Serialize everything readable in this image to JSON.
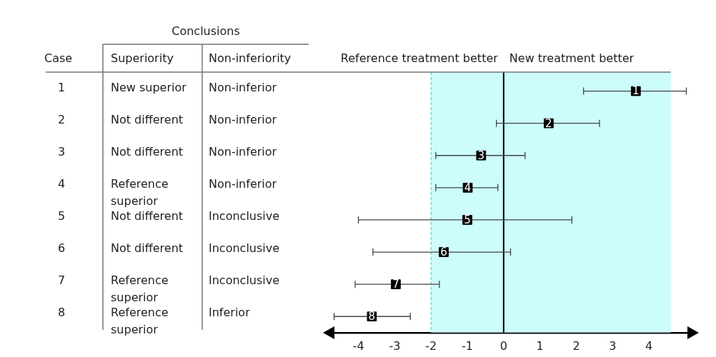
{
  "chart_data": {
    "type": "scatter",
    "orientation": "horizontal",
    "categories": [
      "1",
      "2",
      "3",
      "4",
      "5",
      "6",
      "7",
      "8"
    ],
    "values": [
      3.64,
      1.24,
      -0.62,
      -0.99,
      -1.0,
      -1.65,
      -2.97,
      -3.63
    ],
    "errors": [
      [
        2.2,
        5.03
      ],
      [
        -0.2,
        2.64
      ],
      [
        -1.87,
        0.59
      ],
      [
        -1.87,
        -0.16
      ],
      [
        -4.0,
        1.88
      ],
      [
        -3.6,
        0.19
      ],
      [
        -4.09,
        -1.77
      ],
      [
        -4.67,
        -2.57
      ]
    ],
    "color": "#000000",
    "marker": "square",
    "xlim": [
      -4.7,
      5.1
    ],
    "xticks": [
      -4,
      -3,
      -2,
      -1,
      0,
      1,
      2,
      3,
      4
    ],
    "ref_lines": [
      {
        "axis": "x",
        "value": 0,
        "color": "#000000",
        "line_style": "solid"
      },
      {
        "axis": "x",
        "value": -2,
        "color": "#33dddd",
        "line_style": "dashed"
      }
    ],
    "bands": [
      {
        "axis": "x",
        "from": -2,
        "to": 4.6,
        "color": "#ccfcfc"
      }
    ],
    "annotations": [
      "Case",
      "Conclusions",
      "Superiority",
      "Non-inferiority",
      "New superior",
      "Non-inferior",
      "Not different",
      "Non-inferior",
      "Not different",
      "Non-inferior",
      "Reference superior",
      "Non-inferior",
      "Not different",
      "Inconclusive",
      "Not different",
      "Inconclusive",
      "Reference superior",
      "Inconclusive",
      "Reference superior",
      "Inferior",
      "Reference treatment better",
      "New treatment better"
    ],
    "grid": false,
    "legend": false
  }
}
